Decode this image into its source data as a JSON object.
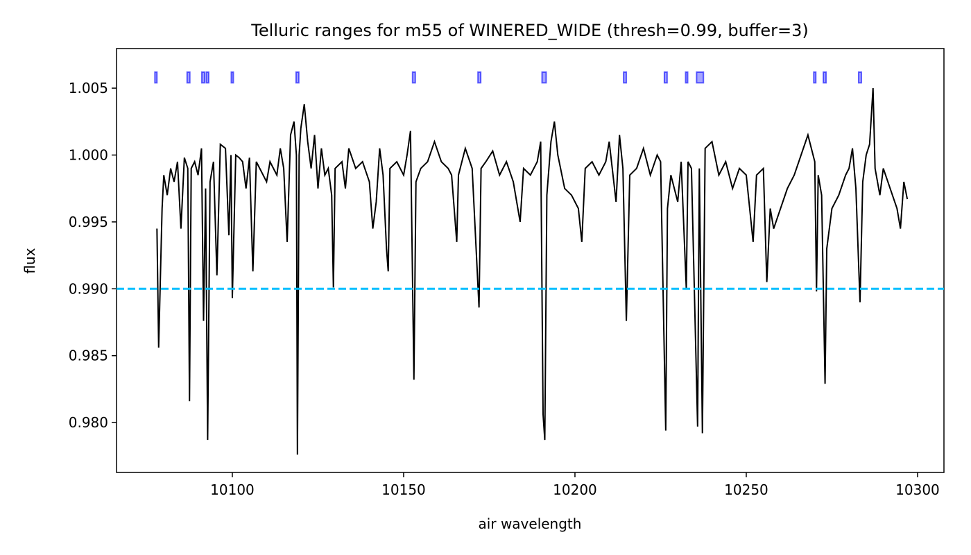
{
  "chart_data": {
    "type": "line",
    "title": "Telluric ranges for m55 of WINERED_WIDE (thresh=0.99, buffer=3)",
    "xlabel": "air wavelength",
    "ylabel": "flux",
    "color": "#000000",
    "x": [
      10078,
      10078.5,
      10079.5,
      10080,
      10081,
      10082,
      10083,
      10084,
      10085,
      10086,
      10087,
      10087.5,
      10088,
      10089,
      10090,
      10091,
      10091.6,
      10092.2,
      10092.8,
      10093.5,
      10094.5,
      10095.5,
      10096.5,
      10098,
      10099,
      10099.6,
      10100,
      10101,
      10102,
      10103,
      10104,
      10105,
      10106,
      10107,
      10108,
      10110,
      10111,
      10112,
      10113,
      10114,
      10115,
      10116,
      10117,
      10118,
      10118.7,
      10119,
      10119.5,
      10120,
      10121,
      10122,
      10123,
      10124,
      10125,
      10126,
      10127,
      10128,
      10129,
      10129.5,
      10130,
      10132,
      10133,
      10134,
      10136,
      10138,
      10140,
      10141,
      10142,
      10143,
      10144,
      10145,
      10145.5,
      10146,
      10148,
      10150,
      10151,
      10152,
      10153,
      10153.6,
      10155,
      10157,
      10159,
      10161,
      10163,
      10164,
      10165.5,
      10166,
      10168,
      10170,
      10172,
      10172.6,
      10174,
      10176,
      10178,
      10180,
      10182,
      10184,
      10185,
      10187,
      10189,
      10190,
      10190.7,
      10191.2,
      10191.8,
      10193,
      10194,
      10195,
      10197,
      10199,
      10201,
      10202,
      10203,
      10205,
      10207,
      10209,
      10210,
      10212,
      10213,
      10214,
      10215,
      10216,
      10218,
      10220,
      10222,
      10224,
      10225,
      10226.5,
      10227,
      10228,
      10230,
      10231,
      10232.5,
      10233,
      10234,
      10235.8,
      10236.3,
      10237.2,
      10238,
      10240,
      10242,
      10244,
      10246,
      10248,
      10250,
      10252,
      10253,
      10255,
      10256,
      10257,
      10258,
      10260,
      10262,
      10264,
      10266,
      10268,
      10269,
      10270,
      10270.5,
      10271,
      10272,
      10273,
      10273.5,
      10275,
      10277,
      10279,
      10280,
      10281,
      10282,
      10283.2,
      10284,
      10285,
      10286,
      10287,
      10287.6,
      10289,
      10290,
      10292,
      10294,
      10295,
      10296,
      10297
    ],
    "values": [
      0.9945,
      0.9856,
      0.996,
      0.9985,
      0.997,
      0.999,
      0.998,
      0.9995,
      0.9945,
      0.9998,
      0.999,
      0.9816,
      0.999,
      0.9995,
      0.9985,
      1.0005,
      0.9876,
      0.9975,
      0.9787,
      0.998,
      0.9995,
      0.991,
      1.0008,
      1.0005,
      0.994,
      1.0,
      0.9893,
      1.0,
      0.9998,
      0.9995,
      0.9975,
      0.9998,
      0.9913,
      0.9995,
      0.999,
      0.998,
      0.9995,
      0.999,
      0.9985,
      1.0005,
      0.999,
      0.9935,
      1.0015,
      1.0025,
      1.0,
      0.9776,
      1.0,
      1.002,
      1.0038,
      1.001,
      0.999,
      1.0015,
      0.9975,
      1.0005,
      0.9985,
      0.999,
      0.997,
      0.9901,
      0.999,
      0.9995,
      0.9975,
      1.0005,
      0.999,
      0.9995,
      0.998,
      0.9945,
      0.9965,
      1.0005,
      0.9985,
      0.993,
      0.9913,
      0.999,
      0.9995,
      0.9985,
      1.0,
      1.0018,
      0.9832,
      0.998,
      0.999,
      0.9995,
      1.001,
      0.9995,
      0.999,
      0.9985,
      0.9935,
      0.9985,
      1.0005,
      0.999,
      0.9886,
      0.999,
      0.9995,
      1.0003,
      0.9985,
      0.9995,
      0.998,
      0.995,
      0.999,
      0.9985,
      0.9995,
      1.001,
      0.9806,
      0.9787,
      0.997,
      1.001,
      1.0025,
      1.0,
      0.9975,
      0.997,
      0.996,
      0.9935,
      0.999,
      0.9995,
      0.9985,
      0.9995,
      1.001,
      0.9965,
      1.0015,
      0.999,
      0.9876,
      0.9985,
      0.999,
      1.0005,
      0.9985,
      1.0,
      0.9995,
      0.9794,
      0.996,
      0.9985,
      0.9965,
      0.9995,
      0.99,
      0.9995,
      0.999,
      0.9797,
      0.999,
      0.9792,
      1.0005,
      1.001,
      0.9985,
      0.9995,
      0.9975,
      0.999,
      0.9985,
      0.9935,
      0.9985,
      0.999,
      0.9905,
      0.996,
      0.9945,
      0.996,
      0.9975,
      0.9985,
      1.0,
      1.0015,
      1.0005,
      0.9995,
      0.9898,
      0.9985,
      0.997,
      0.9829,
      0.993,
      0.996,
      0.997,
      0.9985,
      0.999,
      1.0005,
      0.9975,
      0.989,
      0.998,
      1.0,
      1.0008,
      1.005,
      0.999,
      0.997,
      0.999,
      0.9975,
      0.996,
      0.9945,
      0.998,
      0.9967
    ],
    "hlines": [
      {
        "value": 0.99,
        "color": "#00bfff"
      }
    ],
    "ranges": [
      [
        10077.4,
        10078.0
      ],
      [
        10086.8,
        10087.6
      ],
      [
        10091.1,
        10091.9
      ],
      [
        10092.4,
        10093.1
      ],
      [
        10099.7,
        10100.3
      ],
      [
        10118.6,
        10119.4
      ],
      [
        10152.6,
        10153.4
      ],
      [
        10171.7,
        10172.5
      ],
      [
        10190.4,
        10191.6
      ],
      [
        10214.2,
        10215.0
      ],
      [
        10226.1,
        10226.9
      ],
      [
        10232.3,
        10232.9
      ],
      [
        10235.5,
        10237.5
      ],
      [
        10269.7,
        10270.3
      ],
      [
        10272.5,
        10273.3
      ],
      [
        10282.8,
        10283.6
      ]
    ],
    "range_ylim": [
      1.0054,
      1.0062
    ],
    "range_color": "#0000ff",
    "xlim": [
      10066.2,
      10307.7
    ],
    "ylim": [
      0.97627,
      1.00796
    ],
    "xticks": [
      10100,
      10150,
      10200,
      10250,
      10300
    ],
    "yticks": [
      {
        "value": 0.98,
        "label": "0.980"
      },
      0.985,
      {
        "value": 0.99,
        "label": "0.990"
      },
      0.995,
      {
        "value": 1.0,
        "label": "1.000"
      },
      1.005
    ]
  }
}
